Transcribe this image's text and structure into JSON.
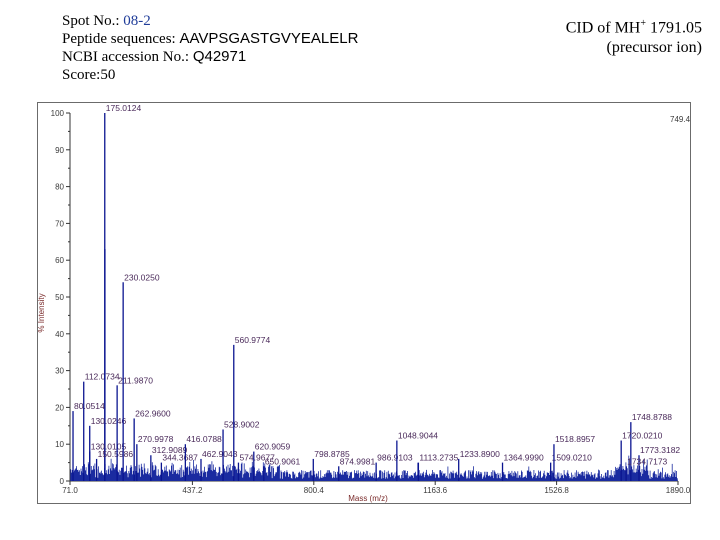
{
  "header": {
    "spot_label": "Spot No.:",
    "spot_value": "08-2",
    "peptide_label": "Peptide sequences:",
    "peptide_value": "AAVPSGASTGVYEALELR",
    "ncbi_label": "NCBI accession No.:",
    "ncbi_value": "Q42971",
    "score_text": "Score:50"
  },
  "cid": {
    "line1_prefix": "CID of MH",
    "line1_sup": "+",
    "line1_value": "1791.05",
    "line2": "(precursor ion)"
  },
  "chart_data": {
    "type": "line",
    "xlabel": "Mass (m/z)",
    "ylabel": "% Intensity",
    "xlim": [
      71.0,
      1890.0
    ],
    "ylim": [
      0,
      100
    ],
    "x_ticks": [
      71.0,
      437.2,
      800.4,
      1163.6,
      1526.8,
      1890.0
    ],
    "x_tick_labels": [
      "71.0",
      "437.2",
      "800.4",
      "1163.6",
      "1526.8",
      "1890.0"
    ],
    "y_ticks": [
      0,
      10,
      20,
      30,
      40,
      50,
      60,
      70,
      80,
      90,
      100
    ],
    "corner_label": "749.4",
    "peaks": [
      {
        "x": 112.0734,
        "y": 27,
        "label": "112.0734"
      },
      {
        "x": 175.0124,
        "y": 100,
        "label": "175.0124"
      },
      {
        "x": 175.5,
        "y": 63,
        "label": ""
      },
      {
        "x": 80.0514,
        "y": 19,
        "label": "80.0514"
      },
      {
        "x": 130.0246,
        "y": 15,
        "label": "130.0246"
      },
      {
        "x": 130.0105,
        "y": 8,
        "label": "130.0105"
      },
      {
        "x": 150.5986,
        "y": 6,
        "label": "150.5986"
      },
      {
        "x": 211.987,
        "y": 26,
        "label": "211.9870"
      },
      {
        "x": 230.025,
        "y": 54,
        "label": "230.0250"
      },
      {
        "x": 262.96,
        "y": 17,
        "label": "262.9600"
      },
      {
        "x": 270.9978,
        "y": 10,
        "label": "270.9978"
      },
      {
        "x": 312.9089,
        "y": 7,
        "label": "312.9089"
      },
      {
        "x": 344.3687,
        "y": 5,
        "label": "344.3687"
      },
      {
        "x": 416.0788,
        "y": 10,
        "label": "416.0788"
      },
      {
        "x": 462.9043,
        "y": 6,
        "label": "462.9043"
      },
      {
        "x": 528.9002,
        "y": 14,
        "label": "528.9002"
      },
      {
        "x": 560.9774,
        "y": 37,
        "label": "560.9774"
      },
      {
        "x": 574.9677,
        "y": 5,
        "label": "574.9677"
      },
      {
        "x": 620.9059,
        "y": 8,
        "label": "620.9059"
      },
      {
        "x": 650.9061,
        "y": 4,
        "label": "650.9061"
      },
      {
        "x": 798.8785,
        "y": 6,
        "label": "798.8785"
      },
      {
        "x": 874.9981,
        "y": 4,
        "label": "874.9981"
      },
      {
        "x": 986.9103,
        "y": 5,
        "label": "986.9103"
      },
      {
        "x": 1048.9044,
        "y": 11,
        "label": "1048.9044"
      },
      {
        "x": 1113.2735,
        "y": 5,
        "label": "1113.2735"
      },
      {
        "x": 1233.89,
        "y": 6,
        "label": "1233.8900"
      },
      {
        "x": 1364.999,
        "y": 5,
        "label": "1364.9990"
      },
      {
        "x": 1509.021,
        "y": 5,
        "label": "1509.0210"
      },
      {
        "x": 1518.8957,
        "y": 10,
        "label": "1518.8957"
      },
      {
        "x": 1748.8788,
        "y": 16,
        "label": "1748.8788"
      },
      {
        "x": 1720.021,
        "y": 11,
        "label": "1720.0210"
      },
      {
        "x": 1773.3182,
        "y": 7,
        "label": "1773.3182"
      },
      {
        "x": 1734.7173,
        "y": 4,
        "label": "1734.7173"
      }
    ]
  }
}
